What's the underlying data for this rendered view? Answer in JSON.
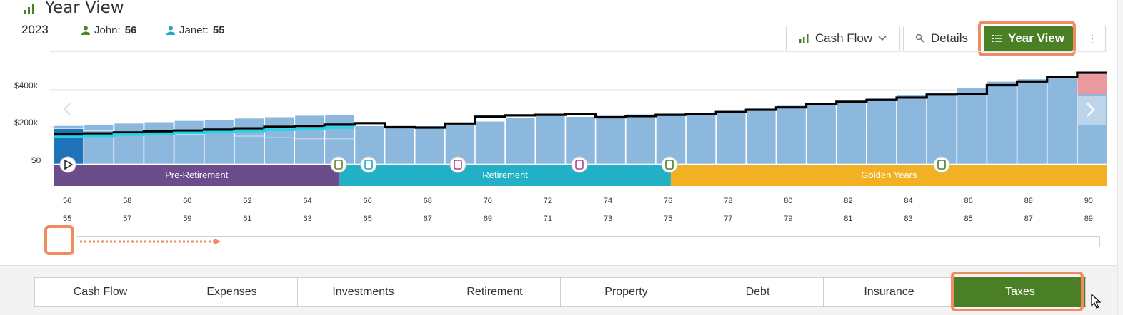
{
  "header": {
    "title": "Year View",
    "year": "2023",
    "person1_label": "John:",
    "person1_age": "56",
    "person2_label": "Janet:",
    "person2_age": "55"
  },
  "toolbar": {
    "cashflow_label": "Cash Flow",
    "details_label": "Details",
    "yearview_label": "Year View",
    "more_label": "⋮"
  },
  "chart_data": {
    "type": "bar",
    "ylabels": [
      "$400k",
      "$200k",
      "$0"
    ],
    "ages_john": [
      "56",
      "58",
      "60",
      "62",
      "64",
      "66",
      "68",
      "70",
      "72",
      "74",
      "76",
      "78",
      "80",
      "82",
      "84",
      "86",
      "88",
      "90"
    ],
    "ages_janet": [
      "55",
      "57",
      "59",
      "61",
      "63",
      "65",
      "67",
      "69",
      "71",
      "73",
      "75",
      "77",
      "79",
      "81",
      "83",
      "85",
      "87",
      "89"
    ],
    "phases": [
      {
        "name": "Pre-Retirement",
        "start": 0,
        "end": 9.5,
        "color": "#6d4c8c"
      },
      {
        "name": "Retirement",
        "start": 9.5,
        "end": 20.5,
        "color": "#21b0c6"
      },
      {
        "name": "Golden Years",
        "start": 20.5,
        "end": 35,
        "color": "#f1b122"
      }
    ],
    "bars": [
      190,
      178,
      170,
      165,
      160,
      155,
      150,
      142,
      135,
      135,
      205,
      205,
      205,
      210,
      230,
      250,
      260,
      255,
      260,
      268,
      270,
      278,
      288,
      300,
      315,
      330,
      340,
      355,
      370,
      380,
      410,
      445,
      458,
      478,
      490
    ],
    "shortfall": [
      0,
      0,
      0,
      0,
      0,
      0,
      0,
      0,
      0,
      0,
      0,
      0,
      0,
      0,
      0,
      0,
      0,
      0,
      0,
      0,
      0,
      0,
      0,
      0,
      0,
      0,
      0,
      0,
      0,
      0,
      0,
      0,
      0,
      0,
      0
    ],
    "goal_line": [
      160,
      165,
      170,
      175,
      180,
      185,
      192,
      200,
      205,
      212,
      220,
      198,
      196,
      218,
      255,
      262,
      265,
      270,
      252,
      258,
      265,
      270,
      280,
      292,
      305,
      322,
      335,
      345,
      358,
      374,
      378,
      425,
      445,
      470,
      492
    ],
    "cyan_line": [
      145,
      152,
      158,
      163,
      168,
      172,
      178,
      184,
      190,
      196
    ],
    "stale_top": [
      205,
      212,
      218,
      225,
      232,
      238,
      245,
      252,
      260,
      265
    ],
    "event_icons": [
      "play-icon",
      "rocking-chair-icon",
      "rocking-chair-icon",
      "book-icon",
      "bandage-icon",
      "sailboat-icon",
      "tombstone-icon"
    ]
  },
  "tabs": [
    "Cash Flow",
    "Expenses",
    "Investments",
    "Retirement",
    "Property",
    "Debt",
    "Insurance",
    "Taxes"
  ],
  "active_tab": "Taxes",
  "colors": {
    "accent_green": "#4a7f25",
    "highlight_orange": "#f08a60",
    "bar_blue": "#8db8de",
    "dark_blue": "#1f74b9",
    "shortfall_red": "#e89a9e"
  }
}
